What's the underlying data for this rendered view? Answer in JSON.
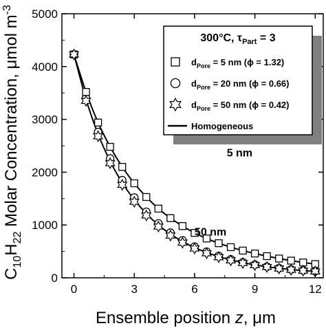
{
  "chart_data": {
    "type": "line",
    "xlabel_prefix": "Ensemble position ",
    "xlabel_var": "z",
    "xlabel_suffix": ", μm",
    "ylabel_c": "C",
    "ylabel_sub1": "10",
    "ylabel_h": "H",
    "ylabel_sub2": "22",
    "ylabel_rest": " Molar Concentration, μmol m",
    "ylabel_sup": "-3",
    "xlim": [
      -0.6,
      12.4
    ],
    "ylim": [
      0,
      5000
    ],
    "xticks": [
      "0",
      "3",
      "6",
      "9",
      "12"
    ],
    "yticks": [
      "0",
      "1000",
      "2000",
      "3000",
      "4000",
      "5000"
    ],
    "legend": {
      "title_main": "300°C, ",
      "title_tau": "τ",
      "title_sub": "Part",
      "title_eq": " = 3",
      "entries": [
        {
          "d": "d",
          "sub": "Pore",
          "text": " = 5 nm (ϕ = 1.32)",
          "marker": "square"
        },
        {
          "d": "d",
          "sub": "Pore",
          "text": " = 20 nm (ϕ = 0.66)",
          "marker": "circle"
        },
        {
          "d": "d",
          "sub": "Pore",
          "text": " = 50 nm (ϕ = 0.42)",
          "marker": "star"
        },
        {
          "d": "",
          "sub": "",
          "text": "Homogeneous",
          "marker": "line"
        }
      ]
    },
    "annotations": [
      {
        "text": "5 nm",
        "x": 7.6,
        "y": 2300
      },
      {
        "text": "50 nm",
        "x": 6.0,
        "y": 800
      }
    ],
    "series": [
      {
        "marker": "square",
        "x": [
          0,
          0.6,
          1.2,
          1.8,
          2.4,
          3.0,
          3.6,
          4.2,
          4.8,
          5.4,
          6.0,
          6.6,
          7.2,
          7.8,
          8.4,
          9.0,
          9.6,
          10.2,
          10.8,
          11.4,
          12.0
        ],
        "y": [
          4230,
          3520,
          2940,
          2480,
          2100,
          1790,
          1530,
          1310,
          1130,
          980,
          850,
          745,
          655,
          580,
          515,
          460,
          410,
          365,
          325,
          290,
          260
        ]
      },
      {
        "marker": "circle",
        "x": [
          0,
          0.6,
          1.2,
          1.8,
          2.4,
          3.0,
          3.6,
          4.2,
          4.8,
          5.4,
          6.0,
          6.6,
          7.2,
          7.8,
          8.4,
          9.0,
          9.6,
          10.2,
          10.8,
          11.4,
          12.0
        ],
        "y": [
          4230,
          3400,
          2760,
          2260,
          1850,
          1520,
          1250,
          1030,
          855,
          710,
          590,
          495,
          415,
          350,
          295,
          250,
          212,
          182,
          158,
          140,
          125
        ]
      },
      {
        "marker": "star",
        "x": [
          0,
          0.6,
          1.2,
          1.8,
          2.4,
          3.0,
          3.6,
          4.2,
          4.8,
          5.4,
          6.0,
          6.6,
          7.2,
          7.8,
          8.4,
          9.0,
          9.6,
          10.2,
          10.8,
          11.4,
          12.0
        ],
        "y": [
          4230,
          3350,
          2680,
          2170,
          1760,
          1440,
          1180,
          970,
          800,
          665,
          555,
          465,
          390,
          330,
          280,
          240,
          205,
          176,
          152,
          135,
          120
        ]
      },
      {
        "marker": "line",
        "x": [
          0,
          0.6,
          1.2,
          1.8,
          2.4,
          3.0,
          3.6,
          4.2,
          4.8,
          5.4,
          6.0,
          6.6,
          7.2,
          7.8,
          8.4,
          9.0,
          9.6,
          10.2,
          10.8,
          11.4,
          12.0
        ],
        "y": [
          4230,
          3380,
          2720,
          2210,
          1800,
          1480,
          1215,
          1000,
          828,
          688,
          573,
          480,
          403,
          340,
          288,
          246,
          210,
          180,
          156,
          138,
          122
        ]
      }
    ],
    "line5nm": {
      "x": [
        0,
        0.6,
        1.2,
        1.8,
        2.4,
        3.0,
        3.6,
        4.2,
        4.8,
        5.4,
        6.0,
        6.6,
        7.2,
        7.8,
        8.4,
        9.0,
        9.6,
        10.2,
        10.8,
        11.4,
        12.0
      ],
      "y": [
        4230,
        3520,
        2940,
        2480,
        2100,
        1790,
        1530,
        1310,
        1130,
        980,
        850,
        745,
        655,
        580,
        515,
        460,
        410,
        365,
        325,
        290,
        260
      ]
    }
  }
}
